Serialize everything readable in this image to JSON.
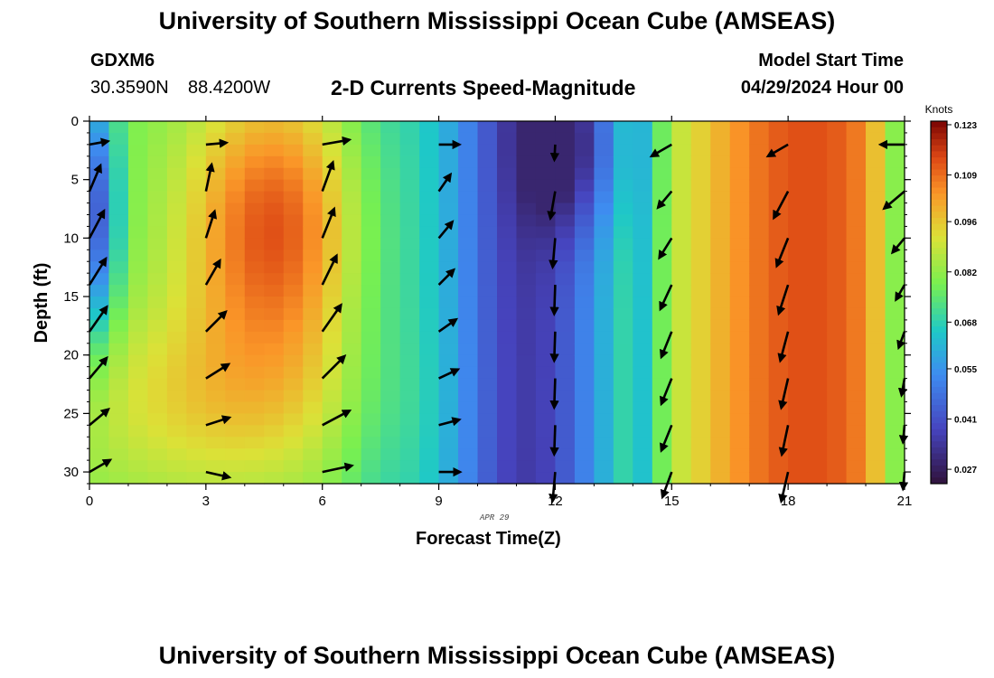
{
  "titles": {
    "top": "University of Southern Mississippi Ocean Cube (AMSEAS)",
    "bottom": "University of Southern Mississippi Ocean Cube (AMSEAS)"
  },
  "station": {
    "name": "GDXM6",
    "lat": "30.3590N",
    "lon": "88.4200W"
  },
  "model": {
    "label": "Model Start Time",
    "start": "04/29/2024 Hour 00"
  },
  "chart_data": {
    "type": "heatmap",
    "title": "2-D Currents Speed-Magnitude",
    "xlabel": "Forecast Time(Z)",
    "ylabel": "Depth (ft)",
    "date_label": "APR 29",
    "xlim": [
      0,
      21
    ],
    "ylim": [
      0,
      31
    ],
    "x_ticks": [
      0,
      3,
      6,
      9,
      12,
      15,
      18,
      21
    ],
    "x_tick_labels": [
      "0",
      "3",
      "6",
      "9",
      "12",
      "15",
      "18",
      "21"
    ],
    "y_ticks": [
      0,
      5,
      10,
      15,
      20,
      25,
      30
    ],
    "y_tick_labels": [
      "0",
      "5",
      "10",
      "15",
      "20",
      "25",
      "30"
    ],
    "colorbar": {
      "unit": "Knots",
      "min": 0.023,
      "max": 0.124,
      "tick_labels": [
        "0.123",
        "0.109",
        "0.096",
        "0.082",
        "0.068",
        "0.055",
        "0.041",
        "0.027"
      ],
      "tick_values": [
        0.123,
        0.109,
        0.096,
        0.082,
        0.068,
        0.055,
        0.041,
        0.027
      ]
    },
    "vector_times": [
      0,
      3,
      6,
      9,
      12,
      15,
      18,
      21
    ],
    "vector_depths": [
      2,
      6,
      10,
      14,
      18,
      22,
      26,
      30
    ],
    "vector_angles_deg": [
      [
        -10,
        -67,
        -62,
        -58,
        -55,
        -50,
        -40,
        -30
      ],
      [
        -5,
        -78,
        -72,
        -60,
        -45,
        -32,
        -18,
        13
      ],
      [
        -10,
        -70,
        -68,
        -64,
        -55,
        -45,
        -28,
        -12
      ],
      [
        0,
        -55,
        -50,
        -45,
        -35,
        -25,
        -15,
        0
      ],
      [
        93,
        100,
        95,
        92,
        92,
        92,
        92,
        95
      ],
      [
        150,
        130,
        122,
        115,
        112,
        112,
        112,
        110
      ],
      [
        150,
        118,
        112,
        108,
        105,
        103,
        102,
        103
      ],
      [
        180,
        140,
        130,
        120,
        110,
        100,
        95,
        95
      ]
    ],
    "vector_lengths": [
      [
        0.55,
        0.82,
        0.9,
        0.9,
        0.88,
        0.78,
        0.72,
        0.7
      ],
      [
        0.6,
        0.8,
        0.82,
        0.82,
        0.82,
        0.78,
        0.72,
        0.7
      ],
      [
        0.8,
        0.9,
        0.92,
        0.95,
        0.95,
        0.92,
        0.9,
        0.88
      ],
      [
        0.6,
        0.6,
        0.62,
        0.62,
        0.62,
        0.62,
        0.62,
        0.62
      ],
      [
        0.45,
        0.8,
        0.85,
        0.85,
        0.85,
        0.85,
        0.85,
        0.85
      ],
      [
        0.68,
        0.62,
        0.68,
        0.78,
        0.8,
        0.8,
        0.8,
        0.78
      ],
      [
        0.68,
        0.88,
        0.88,
        0.88,
        0.88,
        0.88,
        0.88,
        0.88
      ],
      [
        0.7,
        0.78,
        0.55,
        0.5,
        0.5,
        0.5,
        0.5,
        0.5
      ]
    ]
  }
}
